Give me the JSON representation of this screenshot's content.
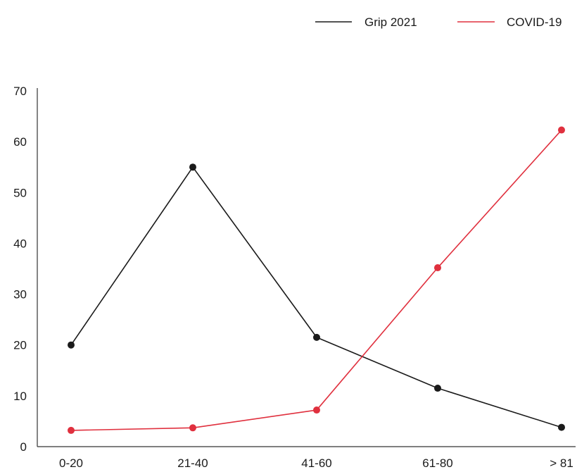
{
  "chart_data": {
    "type": "line",
    "categories": [
      "0-20",
      "21-40",
      "41-60",
      "61-80",
      "> 81"
    ],
    "ylim": [
      0,
      70
    ],
    "yticks": [
      "0",
      "10",
      "20",
      "30",
      "40",
      "50",
      "60",
      "70"
    ],
    "grid": false,
    "legend_position": "top-right",
    "series": [
      {
        "name": "Grip 2021",
        "color": "#1a1a1a",
        "values": [
          20,
          55,
          21.5,
          11.5,
          3.8
        ]
      },
      {
        "name": "COVID-19",
        "color": "#e0303e",
        "values": [
          3.2,
          3.7,
          7.2,
          35.2,
          62.3
        ]
      }
    ]
  }
}
